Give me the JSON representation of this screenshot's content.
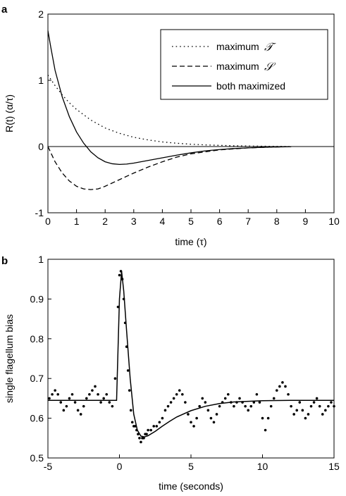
{
  "chart_data": [
    {
      "panel_label": "a",
      "type": "line",
      "xlabel": "time (τ)",
      "ylabel": "R(t) (α/τ)",
      "xlim": [
        0,
        10
      ],
      "ylim": [
        -1,
        2
      ],
      "xticks": [
        "0",
        "1",
        "2",
        "3",
        "4",
        "5",
        "6",
        "7",
        "8",
        "9",
        "10"
      ],
      "yticks": [
        "-1",
        "0",
        "1",
        "2"
      ],
      "legend": "top-right",
      "zero_line": true,
      "series": [
        {
          "legend_prefix": "maximum",
          "legend_symbol": "𝒯",
          "style": "dotted",
          "x": [
            0,
            0.25,
            0.5,
            0.75,
            1,
            1.5,
            2,
            2.5,
            3,
            3.5,
            4,
            4.5,
            5,
            5.5,
            6,
            6.5,
            7,
            7.5,
            8,
            8.5
          ],
          "y": [
            1.08,
            0.92,
            0.78,
            0.66,
            0.56,
            0.4,
            0.28,
            0.2,
            0.14,
            0.1,
            0.07,
            0.05,
            0.035,
            0.025,
            0.018,
            0.012,
            0.008,
            0.005,
            0.003,
            0.0
          ]
        },
        {
          "legend_prefix": "maximum",
          "legend_symbol": "𝒮",
          "style": "dashed",
          "x": [
            0,
            0.25,
            0.5,
            0.75,
            1,
            1.25,
            1.5,
            1.75,
            2,
            2.5,
            3,
            3.5,
            4,
            4.5,
            5,
            5.5,
            6,
            6.5,
            7,
            7.5,
            8,
            8.5
          ],
          "y": [
            0.0,
            -0.23,
            -0.4,
            -0.52,
            -0.6,
            -0.64,
            -0.65,
            -0.64,
            -0.6,
            -0.5,
            -0.4,
            -0.31,
            -0.23,
            -0.16,
            -0.11,
            -0.08,
            -0.05,
            -0.035,
            -0.02,
            -0.012,
            -0.006,
            -0.002
          ]
        },
        {
          "legend_label": "both maximized",
          "style": "solid",
          "x": [
            0,
            0.1,
            0.25,
            0.5,
            0.75,
            1,
            1.25,
            1.5,
            1.75,
            2,
            2.25,
            2.5,
            2.75,
            3,
            3.5,
            4,
            4.5,
            5,
            5.5,
            6,
            6.5,
            7,
            7.5,
            8,
            8.5
          ],
          "y": [
            1.75,
            1.5,
            1.15,
            0.75,
            0.45,
            0.22,
            0.05,
            -0.08,
            -0.17,
            -0.23,
            -0.26,
            -0.27,
            -0.265,
            -0.25,
            -0.21,
            -0.17,
            -0.13,
            -0.095,
            -0.065,
            -0.045,
            -0.03,
            -0.02,
            -0.012,
            -0.006,
            -0.002
          ]
        }
      ]
    },
    {
      "panel_label": "b",
      "type": "scatter",
      "xlabel": "time (seconds)",
      "ylabel": "single flagellum bias",
      "xlim": [
        -5,
        15
      ],
      "ylim": [
        0.5,
        1.0
      ],
      "xticks": [
        "-5",
        "0",
        "5",
        "10",
        "15"
      ],
      "yticks": [
        "0.5",
        "0.6",
        "0.7",
        "0.8",
        "0.9",
        "1"
      ],
      "fit": {
        "style": "solid",
        "x": [
          -5,
          -0.2,
          0,
          0.15,
          0.3,
          0.5,
          0.75,
          1,
          1.25,
          1.5,
          1.75,
          2,
          2.5,
          3,
          3.5,
          4,
          5,
          6,
          7,
          8,
          10,
          12,
          15
        ],
        "y": [
          0.645,
          0.645,
          0.9,
          0.97,
          0.92,
          0.82,
          0.7,
          0.61,
          0.57,
          0.555,
          0.553,
          0.556,
          0.567,
          0.58,
          0.592,
          0.603,
          0.619,
          0.63,
          0.637,
          0.641,
          0.644,
          0.645,
          0.645
        ]
      },
      "points": {
        "x": [
          -4.9,
          -4.7,
          -4.5,
          -4.3,
          -4.1,
          -3.9,
          -3.7,
          -3.5,
          -3.3,
          -3.1,
          -2.9,
          -2.7,
          -2.5,
          -2.3,
          -2.1,
          -1.9,
          -1.7,
          -1.5,
          -1.3,
          -1.1,
          -0.9,
          -0.7,
          -0.5,
          -0.3,
          -0.1,
          0.0,
          0.1,
          0.2,
          0.3,
          0.4,
          0.5,
          0.6,
          0.7,
          0.8,
          0.9,
          1.0,
          1.1,
          1.2,
          1.3,
          1.4,
          1.5,
          1.6,
          1.7,
          1.8,
          1.9,
          2.0,
          2.2,
          2.4,
          2.6,
          2.8,
          3.0,
          3.2,
          3.4,
          3.6,
          3.8,
          4.0,
          4.2,
          4.4,
          4.6,
          4.8,
          5.0,
          5.2,
          5.4,
          5.6,
          5.8,
          6.0,
          6.2,
          6.4,
          6.6,
          6.8,
          7.0,
          7.2,
          7.4,
          7.6,
          7.8,
          8.0,
          8.2,
          8.4,
          8.6,
          8.8,
          9.0,
          9.2,
          9.4,
          9.6,
          9.8,
          10.0,
          10.2,
          10.4,
          10.6,
          10.8,
          11.0,
          11.2,
          11.4,
          11.6,
          11.8,
          12.0,
          12.2,
          12.4,
          12.6,
          12.8,
          13.0,
          13.2,
          13.4,
          13.6,
          13.8,
          14.0,
          14.2,
          14.4,
          14.6,
          14.8,
          15.0
        ],
        "y": [
          0.65,
          0.66,
          0.67,
          0.66,
          0.64,
          0.62,
          0.63,
          0.65,
          0.66,
          0.64,
          0.62,
          0.61,
          0.63,
          0.65,
          0.66,
          0.67,
          0.68,
          0.66,
          0.64,
          0.65,
          0.66,
          0.64,
          0.63,
          0.7,
          0.88,
          0.96,
          0.97,
          0.95,
          0.9,
          0.84,
          0.78,
          0.72,
          0.67,
          0.62,
          0.59,
          0.58,
          0.58,
          0.57,
          0.56,
          0.55,
          0.54,
          0.55,
          0.55,
          0.56,
          0.56,
          0.57,
          0.57,
          0.58,
          0.58,
          0.59,
          0.6,
          0.62,
          0.63,
          0.64,
          0.65,
          0.66,
          0.67,
          0.66,
          0.64,
          0.61,
          0.59,
          0.58,
          0.6,
          0.63,
          0.65,
          0.64,
          0.62,
          0.6,
          0.59,
          0.61,
          0.63,
          0.64,
          0.65,
          0.66,
          0.64,
          0.63,
          0.64,
          0.65,
          0.64,
          0.63,
          0.62,
          0.63,
          0.64,
          0.66,
          0.64,
          0.6,
          0.57,
          0.6,
          0.63,
          0.65,
          0.67,
          0.68,
          0.69,
          0.68,
          0.66,
          0.63,
          0.61,
          0.62,
          0.64,
          0.62,
          0.6,
          0.61,
          0.63,
          0.64,
          0.65,
          0.63,
          0.61,
          0.62,
          0.63,
          0.64,
          0.63
        ]
      }
    }
  ]
}
